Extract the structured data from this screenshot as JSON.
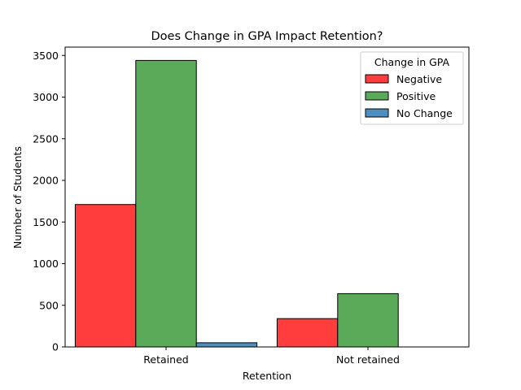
{
  "chart_data": {
    "type": "bar",
    "title": "Does Change in GPA Impact Retention?",
    "xlabel": "Retention",
    "ylabel": "Number of Students",
    "categories": [
      "Retained",
      "Not retained"
    ],
    "ylim": [
      0,
      3600
    ],
    "yticks": [
      0,
      500,
      1000,
      1500,
      2000,
      2500,
      3000,
      3500
    ],
    "legend": {
      "title": "Change in GPA",
      "placement": "top-right"
    },
    "series": [
      {
        "name": "Negative",
        "color": "#ff3d3d",
        "values": [
          1710,
          340
        ]
      },
      {
        "name": "Positive",
        "color": "#5aaa5a",
        "values": [
          3440,
          640
        ]
      },
      {
        "name": "No Change",
        "color": "#4f8fc0",
        "values": [
          50,
          0
        ]
      }
    ],
    "grid": false
  }
}
